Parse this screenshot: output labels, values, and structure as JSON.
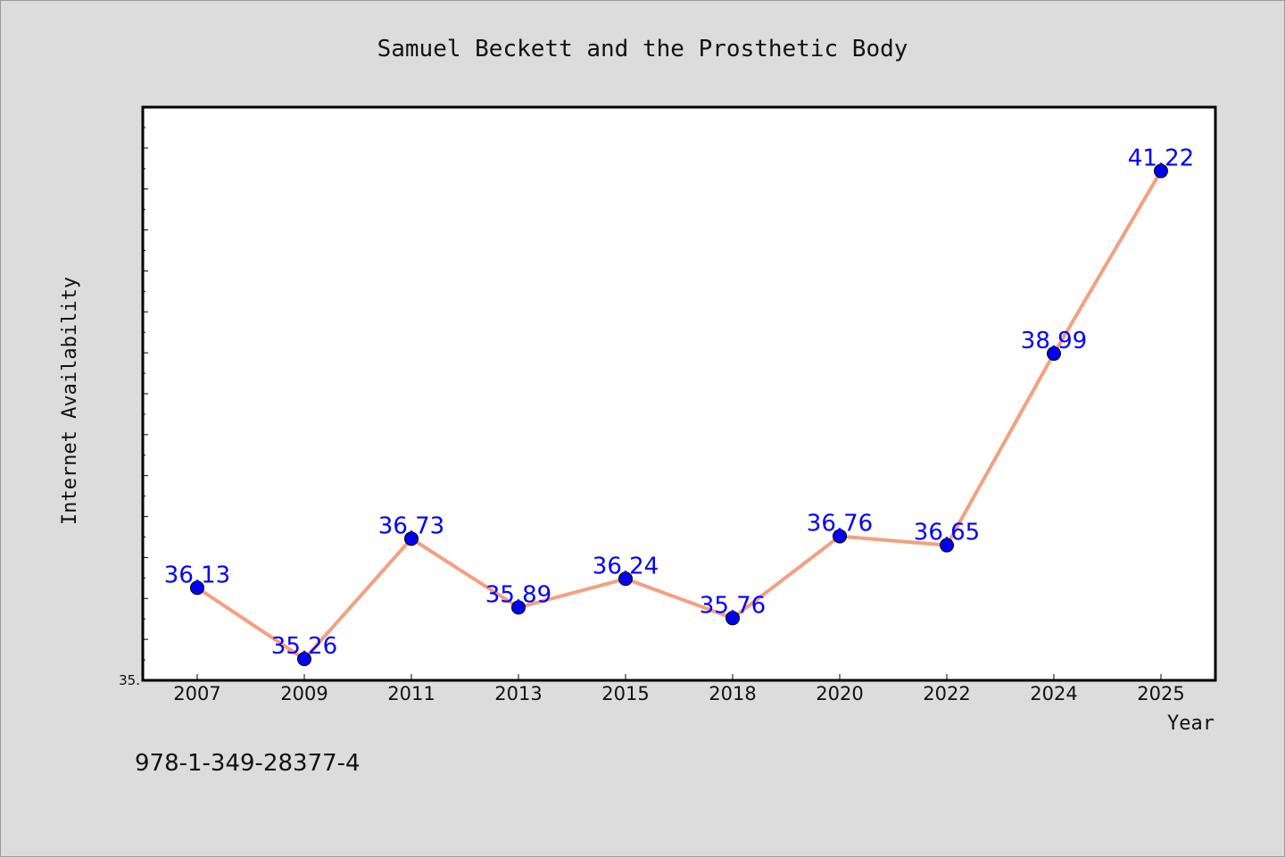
{
  "chart_data": {
    "type": "line",
    "title": "Samuel Beckett and the Prosthetic Body",
    "xlabel": "Year",
    "ylabel": "Internet Availability",
    "categories": [
      "2007",
      "2009",
      "2011",
      "2013",
      "2015",
      "2018",
      "2020",
      "2022",
      "2024",
      "2025"
    ],
    "series": [
      {
        "values": [
          36.13,
          35.26,
          36.73,
          35.89,
          36.24,
          35.76,
          36.76,
          36.65,
          38.99,
          41.22
        ],
        "line_color": "#f4a080",
        "marker_color": "#0000ee",
        "label_color": "#0000ff"
      }
    ],
    "ylim": [
      35.0,
      42.0
    ],
    "ytick_labels": [
      "35."
    ],
    "grid": false
  },
  "footer": {
    "isbn": "978-1-349-28377-4"
  },
  "colors": {
    "background": "#dcdcdc",
    "plot_background": "#ffffff"
  }
}
